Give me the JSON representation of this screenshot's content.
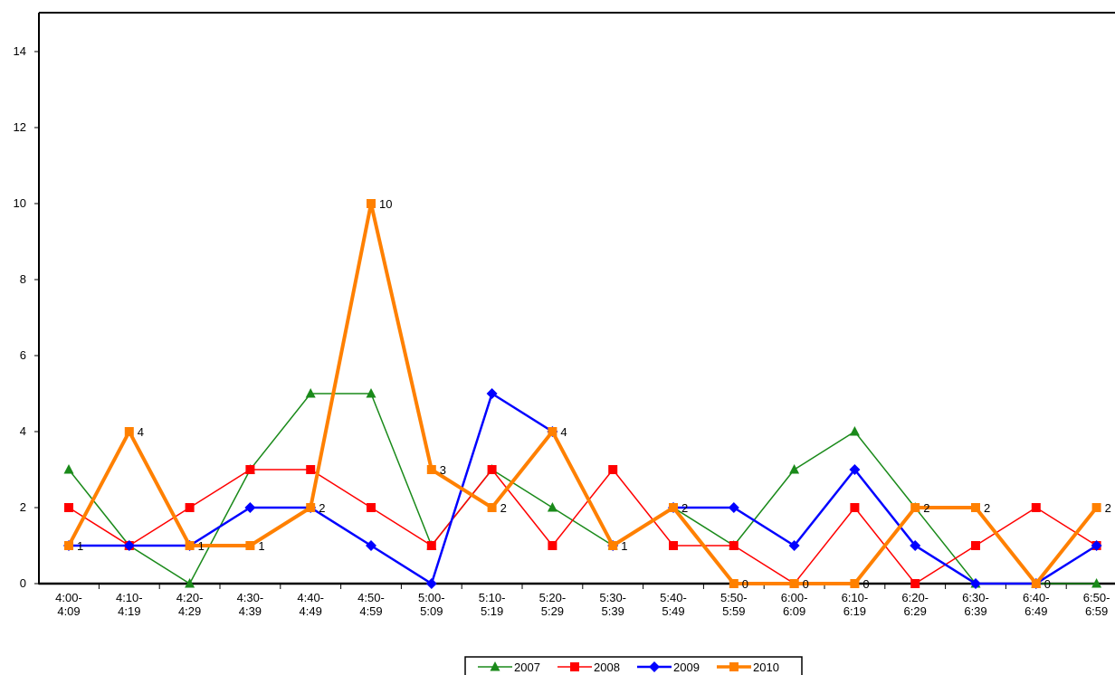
{
  "chart_data": {
    "type": "line",
    "categories": [
      [
        "4:00-",
        "4:09"
      ],
      [
        "4:10-",
        "4:19"
      ],
      [
        "4:20-",
        "4:29"
      ],
      [
        "4:30-",
        "4:39"
      ],
      [
        "4:40-",
        "4:49"
      ],
      [
        "4:50-",
        "4:59"
      ],
      [
        "5:00-",
        "5:09"
      ],
      [
        "5:10-",
        "5:19"
      ],
      [
        "5:20-",
        "5:29"
      ],
      [
        "5:30-",
        "5:39"
      ],
      [
        "5:40-",
        "5:49"
      ],
      [
        "5:50-",
        "5:59"
      ],
      [
        "6:00-",
        "6:09"
      ],
      [
        "6:10-",
        "6:19"
      ],
      [
        "6:20-",
        "6:29"
      ],
      [
        "6:30-",
        "6:39"
      ],
      [
        "6:40-",
        "6:49"
      ],
      [
        "6:50-",
        "6:59"
      ]
    ],
    "ylim": [
      0,
      14
    ],
    "yticks": [
      0,
      2,
      4,
      6,
      8,
      10,
      12,
      14
    ],
    "grid": false,
    "legend_position": "bottom",
    "series": [
      {
        "name": "2007",
        "color": "#1a8a1a",
        "marker": "triangle",
        "width": 1.5,
        "values": [
          3,
          1,
          0,
          3,
          5,
          5,
          1,
          3,
          2,
          1,
          2,
          1,
          3,
          4,
          2,
          0,
          0,
          0
        ],
        "labels": []
      },
      {
        "name": "2008",
        "color": "#ff0000",
        "marker": "square",
        "width": 1.5,
        "values": [
          2,
          1,
          2,
          3,
          3,
          2,
          1,
          3,
          1,
          3,
          1,
          1,
          0,
          2,
          0,
          1,
          2,
          1
        ],
        "labels": []
      },
      {
        "name": "2009",
        "color": "#0000ff",
        "marker": "diamond",
        "width": 2.5,
        "values": [
          1,
          1,
          1,
          2,
          2,
          1,
          0,
          5,
          4,
          1,
          2,
          2,
          1,
          3,
          1,
          0,
          0,
          1
        ],
        "labels": []
      },
      {
        "name": "2010",
        "color": "#ff8000",
        "marker": "bar",
        "width": 4,
        "values": [
          1,
          4,
          1,
          1,
          2,
          10,
          3,
          2,
          4,
          1,
          2,
          0,
          0,
          0,
          2,
          2,
          0,
          2
        ],
        "labels": [
          "1",
          "4",
          "1",
          "1",
          "2",
          "10",
          "3",
          "2",
          "4",
          "1",
          "2",
          "0",
          "0",
          "0",
          "2",
          "2",
          "0",
          "2"
        ]
      }
    ]
  }
}
